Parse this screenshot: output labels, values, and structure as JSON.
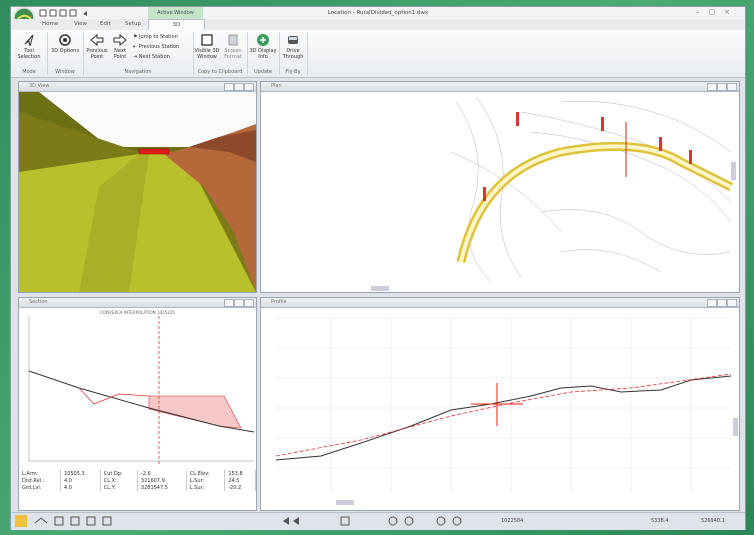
{
  "window": {
    "title": "Location - RuralDivided_option1.dwx"
  },
  "tabs": [
    "Home",
    "View",
    "Edit",
    "Setup",
    "3D"
  ],
  "context_tab": "Active Window",
  "ribbon": {
    "groups": [
      {
        "label": "Mode",
        "buttons": [
          "Tool Selection"
        ]
      },
      {
        "label": "Window",
        "buttons": [
          "3D Options"
        ]
      },
      {
        "label": "Navigation",
        "buttons": [
          "Previous Point",
          "Next Point",
          "Jump to Station",
          "Previous Station",
          "Next Station"
        ]
      },
      {
        "label": "Copy to Clipboard",
        "buttons": [
          "Visible 3D Window",
          "Screen Format"
        ]
      },
      {
        "label": "Update",
        "buttons": [
          "3D Display Info"
        ]
      },
      {
        "label": "Fly-By",
        "buttons": [
          "Drive Through"
        ]
      }
    ]
  },
  "panels": [
    "3D View",
    "Plan",
    "Section",
    "Profile"
  ],
  "section": {
    "title": "CONVEXCA INTERPOLATION 1025225",
    "table": [
      [
        "L.Arm:",
        "10505.3",
        "Cut Dp:",
        "-2.6",
        "CL.Elev:",
        "153.8"
      ],
      [
        "Dist.Rel.:",
        "4.0",
        "CL.X:",
        "321607.9",
        "L.Sur:",
        "24.5"
      ],
      [
        "Grd.Lvl:",
        "4.0",
        "CL.Y:",
        "3281547.5",
        "L.Sur:",
        "-20.2"
      ]
    ]
  },
  "status": [
    "1022584",
    "5338.4",
    "526940.1"
  ]
}
